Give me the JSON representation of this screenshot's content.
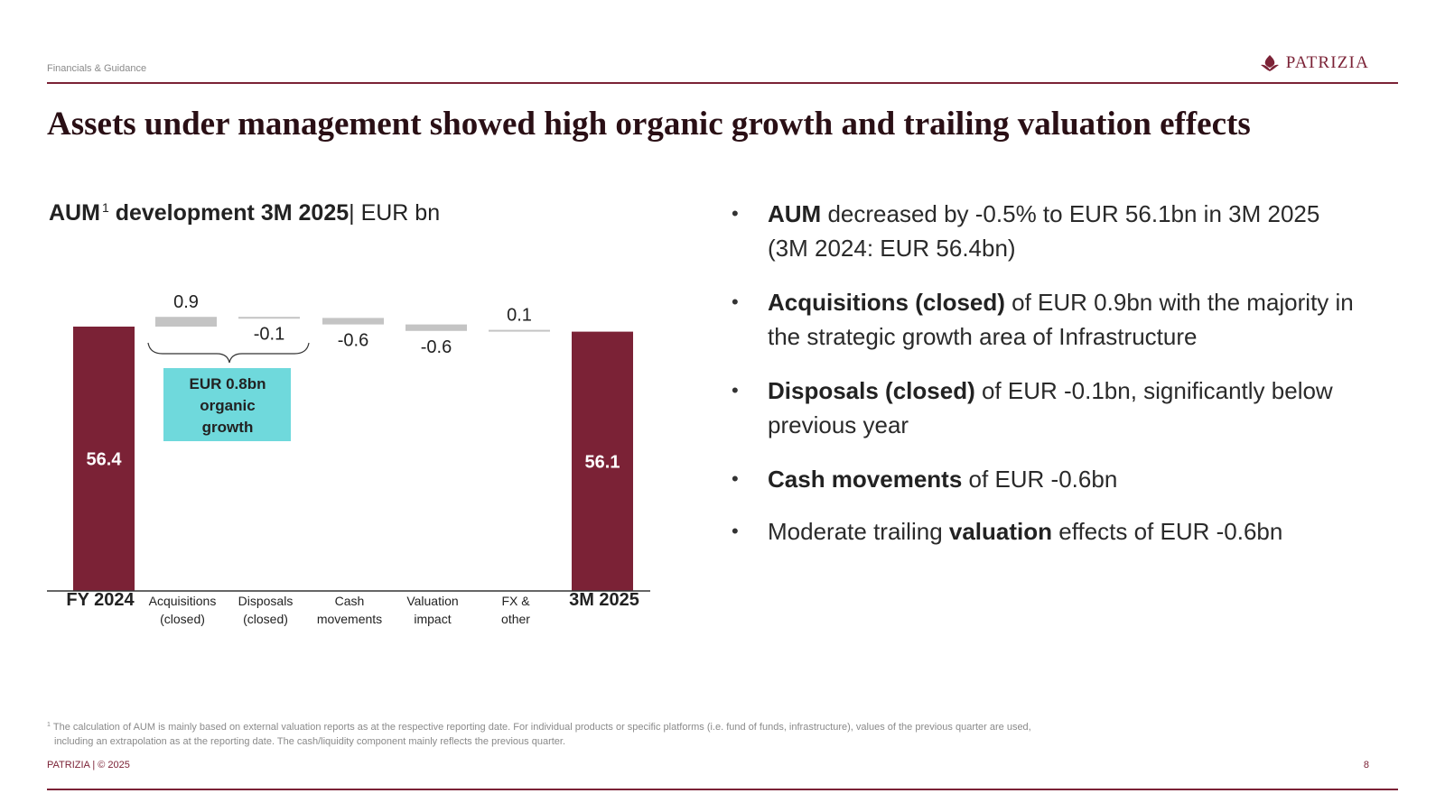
{
  "header": {
    "section_label": "Financials & Guidance",
    "logo_text": "PATRIZIA",
    "title": "Assets under management showed high organic growth and trailing valuation effects"
  },
  "chart_title": {
    "bold": "AUM",
    "footnote_marker": "1",
    "bold_rest": "development 3M 2025",
    "separator": "|",
    "unit": "EUR bn"
  },
  "chart_data": {
    "type": "bar",
    "subtype": "waterfall",
    "title": "AUM1 development 3M 2025 | EUR bn",
    "unit": "EUR bn",
    "steps": [
      {
        "label_lines": [
          "FY 2024"
        ],
        "value": 56.4,
        "kind": "total",
        "display": "56.4"
      },
      {
        "label_lines": [
          "Acquisitions",
          "(closed)"
        ],
        "value": 0.9,
        "kind": "delta",
        "display": "0.9"
      },
      {
        "label_lines": [
          "Disposals",
          "(closed)"
        ],
        "value": -0.1,
        "kind": "delta",
        "display": "-0.1"
      },
      {
        "label_lines": [
          "Cash",
          "movements"
        ],
        "value": -0.6,
        "kind": "delta",
        "display": "-0.6"
      },
      {
        "label_lines": [
          "Valuation",
          "impact"
        ],
        "value": -0.6,
        "kind": "delta",
        "display": "-0.6"
      },
      {
        "label_lines": [
          "FX &",
          "other"
        ],
        "value": 0.1,
        "kind": "delta",
        "display": "0.1"
      },
      {
        "label_lines": [
          "3M 2025"
        ],
        "value": 56.1,
        "kind": "total",
        "display": "56.1"
      }
    ],
    "annotation": {
      "lines": [
        "EUR 0.8bn",
        "organic",
        "growth"
      ],
      "spans_categories": [
        "Acquisitions (closed)",
        "Disposals (closed)"
      ],
      "bracket": "curly"
    },
    "colors": {
      "total": "#7b2236",
      "delta": "#c4c4c4",
      "annotation_fill": "#6fd9dc",
      "axis": "#333333"
    }
  },
  "bullets": [
    {
      "parts": [
        {
          "text": "AUM",
          "bold": true
        },
        {
          "text": " decreased by -0.5% to EUR 56.1bn in 3M 2025 (3M 2024: EUR 56.4bn)",
          "bold": false
        }
      ]
    },
    {
      "parts": [
        {
          "text": "Acquisitions (closed)",
          "bold": true
        },
        {
          "text": " of EUR 0.9bn with the majority in the strategic growth area of Infrastructure",
          "bold": false
        }
      ]
    },
    {
      "parts": [
        {
          "text": "Disposals (closed)",
          "bold": true
        },
        {
          "text": " of EUR -0.1bn, significantly below previous year",
          "bold": false
        }
      ]
    },
    {
      "parts": [
        {
          "text": "Cash movements",
          "bold": true
        },
        {
          "text": " of EUR -0.6bn",
          "bold": false
        }
      ]
    },
    {
      "parts": [
        {
          "text": "Moderate trailing ",
          "bold": false
        },
        {
          "text": "valuation",
          "bold": true
        },
        {
          "text": " effects of EUR -0.6bn",
          "bold": false
        }
      ]
    }
  ],
  "footnote": {
    "marker": "1",
    "line1": "The calculation of AUM is mainly based on external valuation reports as at the respective reporting date. For individual products or specific platforms (i.e. fund of funds, infrastructure), values of the previous quarter are used,",
    "line2": "including an extrapolation as at the reporting date. The cash/liquidity component mainly reflects the previous quarter."
  },
  "footer": {
    "copyright": "PATRIZIA | © 2025",
    "page_number": "8"
  },
  "colors": {
    "brand": "#7b2236",
    "title_text": "#2a0f15",
    "muted_text": "#8a8a8a"
  }
}
